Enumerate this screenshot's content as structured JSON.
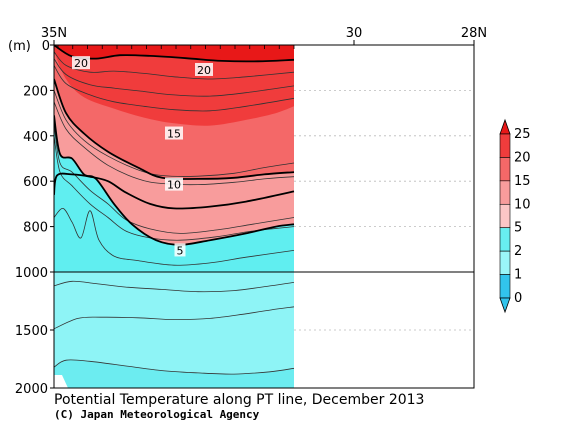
{
  "chart_data": {
    "type": "heatmap",
    "title": "Potential Temperature along PT line, December 2013",
    "credit": "(C) Japan Meteorological Agency",
    "ylabel": "(m)",
    "x_ticks": [
      {
        "lat": 35,
        "label": "35N"
      },
      {
        "lat": 30,
        "label": "30"
      },
      {
        "lat": 28,
        "label": "28N"
      }
    ],
    "xlim": [
      35,
      28
    ],
    "y_upper_ticks": [
      {
        "depth": 0,
        "label": "0"
      },
      {
        "depth": 200,
        "label": "200"
      },
      {
        "depth": 400,
        "label": "400"
      },
      {
        "depth": 600,
        "label": "600"
      },
      {
        "depth": 800,
        "label": "800"
      },
      {
        "depth": 1000,
        "label": "1000"
      }
    ],
    "y_lower_ticks": [
      {
        "depth": 1500,
        "label": "1500"
      },
      {
        "depth": 2000,
        "label": "2000"
      }
    ],
    "ylim": [
      0,
      2000
    ],
    "data_extent_lat": [
      35,
      31
    ],
    "contour_labels": [
      {
        "value": "20",
        "lat": 34.55,
        "depth": 80
      },
      {
        "value": "20",
        "lat": 32.5,
        "depth": 110
      },
      {
        "value": "15",
        "lat": 33.0,
        "depth": 390
      },
      {
        "value": "10",
        "lat": 33.0,
        "depth": 615
      },
      {
        "value": "5",
        "lat": 32.9,
        "depth": 905
      }
    ],
    "legend": {
      "labels": [
        "25",
        "20",
        "15",
        "10",
        "5",
        "2",
        "1",
        "0"
      ],
      "colors": [
        "#e81818",
        "#f03c3c",
        "#f46868",
        "#f89c9c",
        "#fcc6c6",
        "#68eef0",
        "#9af6f8",
        "#32c4ec"
      ],
      "placement": "right"
    },
    "bands_upper": [
      {
        "color": "#f03c3c",
        "depth": [
          [
            35,
            0
          ],
          [
            34.7,
            50
          ],
          [
            34.3,
            60
          ],
          [
            33.9,
            45
          ],
          [
            33.4,
            48
          ],
          [
            32.8,
            58
          ],
          [
            32.2,
            70
          ],
          [
            31.6,
            72
          ],
          [
            31,
            65
          ]
        ]
      },
      {
        "color": "#f46868",
        "depth": [
          [
            35,
            25
          ],
          [
            34.8,
            150
          ],
          [
            34.5,
            230
          ],
          [
            34.0,
            280
          ],
          [
            33.5,
            320
          ],
          [
            33.0,
            345
          ],
          [
            32.4,
            355
          ],
          [
            31.8,
            330
          ],
          [
            31.3,
            300
          ],
          [
            31,
            270
          ]
        ]
      },
      {
        "color": "#f89c9c",
        "depth": [
          [
            35,
            150
          ],
          [
            34.8,
            300
          ],
          [
            34.5,
            390
          ],
          [
            34.1,
            470
          ],
          [
            33.6,
            540
          ],
          [
            33.2,
            585
          ],
          [
            32.6,
            590
          ],
          [
            32.0,
            585
          ],
          [
            31.5,
            570
          ],
          [
            31,
            560
          ]
        ]
      },
      {
        "color": "#fcc6c6",
        "depth": [
          [
            35,
            310
          ],
          [
            34.9,
            480
          ],
          [
            34.7,
            500
          ],
          [
            34.5,
            570
          ],
          [
            34.3,
            590
          ],
          [
            34.0,
            700
          ],
          [
            33.7,
            790
          ],
          [
            33.3,
            860
          ],
          [
            32.9,
            880
          ],
          [
            32.4,
            860
          ],
          [
            31.8,
            830
          ],
          [
            31.3,
            800
          ],
          [
            31,
            790
          ]
        ]
      }
    ],
    "upper_fill_color": "#60eef0",
    "lower_fill_color": "#8ef4f6",
    "lower_deep_color": "#6cecf0",
    "contours_upper": [
      {
        "bold": false,
        "pts": [
          [
            35,
            30
          ],
          [
            34.8,
            90
          ],
          [
            34.4,
            120
          ],
          [
            34.0,
            115
          ],
          [
            33.5,
            125
          ],
          [
            33.0,
            140
          ],
          [
            32.4,
            150
          ],
          [
            31.8,
            140
          ],
          [
            31,
            120
          ]
        ]
      },
      {
        "bold": false,
        "pts": [
          [
            35,
            60
          ],
          [
            34.8,
            130
          ],
          [
            34.4,
            175
          ],
          [
            34.0,
            190
          ],
          [
            33.5,
            205
          ],
          [
            33.0,
            220
          ],
          [
            32.4,
            225
          ],
          [
            31.8,
            210
          ],
          [
            31,
            180
          ]
        ]
      },
      {
        "bold": false,
        "pts": [
          [
            35,
            90
          ],
          [
            34.8,
            170
          ],
          [
            34.4,
            220
          ],
          [
            34.0,
            250
          ],
          [
            33.5,
            270
          ],
          [
            33.0,
            285
          ],
          [
            32.4,
            290
          ],
          [
            31.8,
            270
          ],
          [
            31,
            235
          ]
        ]
      },
      {
        "bold": false,
        "pts": [
          [
            35,
            200
          ],
          [
            34.8,
            330
          ],
          [
            34.5,
            420
          ],
          [
            34.1,
            490
          ],
          [
            33.6,
            550
          ],
          [
            33.2,
            575
          ],
          [
            32.6,
            578
          ],
          [
            32.0,
            565
          ],
          [
            31.5,
            540
          ],
          [
            31,
            520
          ]
        ]
      },
      {
        "bold": false,
        "pts": [
          [
            35,
            250
          ],
          [
            34.8,
            370
          ],
          [
            34.5,
            450
          ],
          [
            34.1,
            530
          ],
          [
            33.6,
            590
          ],
          [
            33.2,
            610
          ],
          [
            32.6,
            615
          ],
          [
            32.0,
            605
          ],
          [
            31.5,
            590
          ],
          [
            31,
            580
          ]
        ]
      },
      {
        "bold": false,
        "pts": [
          [
            35,
            350
          ],
          [
            34.9,
            520
          ],
          [
            34.7,
            560
          ],
          [
            34.4,
            640
          ],
          [
            34.1,
            700
          ],
          [
            33.8,
            770
          ],
          [
            33.4,
            810
          ],
          [
            32.9,
            830
          ],
          [
            32.3,
            815
          ],
          [
            31.7,
            790
          ],
          [
            31,
            760
          ]
        ]
      },
      {
        "bold": false,
        "pts": [
          [
            35,
            400
          ],
          [
            34.9,
            560
          ],
          [
            34.7,
            620
          ],
          [
            34.4,
            700
          ],
          [
            34.1,
            760
          ],
          [
            33.8,
            820
          ],
          [
            33.4,
            850
          ],
          [
            32.9,
            860
          ],
          [
            32.3,
            845
          ],
          [
            31.7,
            820
          ],
          [
            31,
            800
          ]
        ]
      },
      {
        "bold": false,
        "pts": [
          [
            35,
            760
          ],
          [
            34.85,
            720
          ],
          [
            34.7,
            780
          ],
          [
            34.55,
            850
          ],
          [
            34.4,
            730
          ],
          [
            34.25,
            860
          ],
          [
            34.0,
            930
          ],
          [
            33.6,
            950
          ],
          [
            33.0,
            970
          ],
          [
            32.4,
            960
          ],
          [
            31.8,
            935
          ],
          [
            31,
            905
          ]
        ]
      }
    ],
    "contours_upper_bold": [
      {
        "pts": [
          [
            35,
            0
          ],
          [
            34.7,
            50
          ],
          [
            34.3,
            60
          ],
          [
            33.9,
            45
          ],
          [
            33.4,
            48
          ],
          [
            32.8,
            58
          ],
          [
            32.2,
            70
          ],
          [
            31.6,
            72
          ],
          [
            31,
            65
          ]
        ]
      },
      {
        "pts": [
          [
            35,
            150
          ],
          [
            34.8,
            300
          ],
          [
            34.5,
            390
          ],
          [
            34.1,
            470
          ],
          [
            33.6,
            540
          ],
          [
            33.2,
            585
          ],
          [
            32.6,
            590
          ],
          [
            32.0,
            585
          ],
          [
            31.5,
            570
          ],
          [
            31,
            560
          ]
        ]
      },
      {
        "pts": [
          [
            35,
            310
          ],
          [
            34.9,
            480
          ],
          [
            34.7,
            500
          ],
          [
            34.5,
            570
          ],
          [
            34.3,
            590
          ],
          [
            34.0,
            700
          ],
          [
            33.7,
            790
          ],
          [
            33.3,
            860
          ],
          [
            32.9,
            880
          ],
          [
            32.4,
            860
          ],
          [
            31.8,
            830
          ],
          [
            31.3,
            800
          ],
          [
            31,
            790
          ]
        ]
      },
      {
        "pts": [
          [
            35,
            660
          ],
          [
            34.95,
            575
          ],
          [
            34.7,
            570
          ],
          [
            34.4,
            580
          ],
          [
            34.1,
            600
          ],
          [
            33.8,
            650
          ],
          [
            33.4,
            700
          ],
          [
            33.0,
            720
          ],
          [
            32.4,
            712
          ],
          [
            31.8,
            690
          ],
          [
            31,
            645
          ]
        ]
      }
    ],
    "contours_lower": [
      {
        "pts": [
          [
            35,
            1120
          ],
          [
            34.7,
            1080
          ],
          [
            34.3,
            1100
          ],
          [
            33.8,
            1130
          ],
          [
            33.2,
            1150
          ],
          [
            32.6,
            1170
          ],
          [
            32.0,
            1160
          ],
          [
            31.4,
            1120
          ],
          [
            31,
            1090
          ]
        ]
      },
      {
        "pts": [
          [
            35,
            1490
          ],
          [
            34.6,
            1400
          ],
          [
            34.2,
            1390
          ],
          [
            33.6,
            1395
          ],
          [
            33.0,
            1410
          ],
          [
            32.4,
            1400
          ],
          [
            31.8,
            1360
          ],
          [
            31.3,
            1320
          ],
          [
            31,
            1300
          ]
        ]
      },
      {
        "pts": [
          [
            35,
            1820
          ],
          [
            34.8,
            1760
          ],
          [
            34.4,
            1770
          ],
          [
            33.8,
            1810
          ],
          [
            33.2,
            1850
          ],
          [
            32.6,
            1870
          ],
          [
            32.0,
            1880
          ],
          [
            31.4,
            1860
          ],
          [
            31,
            1830
          ]
        ]
      }
    ]
  }
}
